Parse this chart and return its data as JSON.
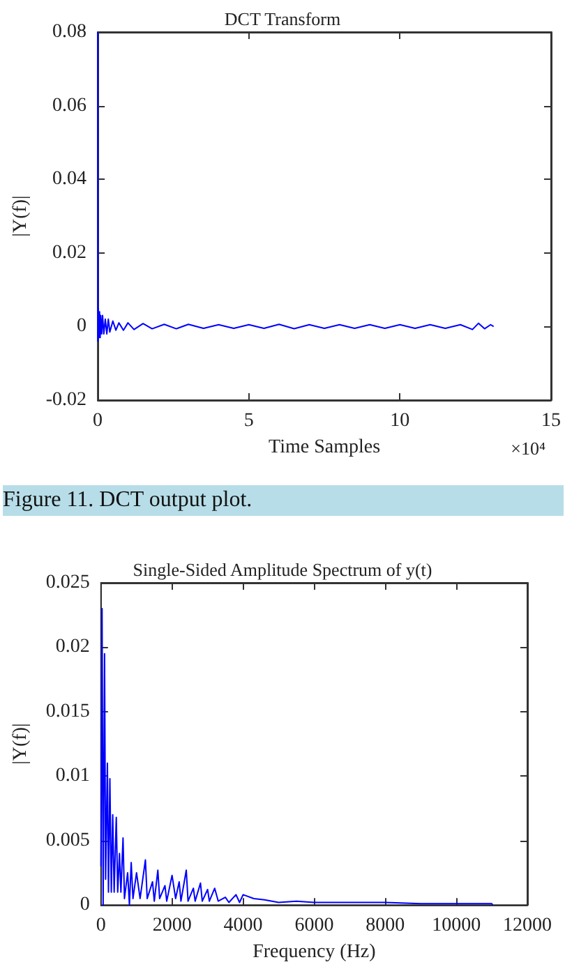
{
  "chart_data": [
    {
      "type": "line",
      "title": "DCT Transform",
      "xlabel": "Time Samples",
      "ylabel": "|Y(f)|",
      "annotations": [
        "×10⁴",
        "Figure 11. DCT output plot."
      ],
      "xlim": [
        0,
        15
      ],
      "xticks": [
        0,
        5,
        10,
        15
      ],
      "ylim": [
        -0.02,
        0.08
      ],
      "yticks": [
        -0.02,
        0,
        0.02,
        0.04,
        0.06,
        0.08
      ],
      "marker": "none",
      "series": [
        {
          "color": "#0000ff",
          "x": [
            0,
            0.005,
            0.02,
            0.04,
            0.06,
            0.08,
            0.1,
            0.13,
            0.16,
            0.2,
            0.25,
            0.3,
            0.35,
            0.4,
            0.5,
            0.6,
            0.7,
            0.85,
            1.0,
            1.2,
            1.5,
            1.8,
            2.2,
            2.6,
            3.0,
            3.5,
            4.0,
            4.5,
            5.0,
            5.5,
            6.0,
            6.5,
            7.0,
            7.5,
            8.0,
            8.5,
            9.0,
            9.5,
            10.0,
            10.5,
            11.0,
            11.5,
            12.0,
            12.4,
            12.6,
            12.8,
            13.0,
            13.1
          ],
          "values": [
            0.08,
            -0.004,
            0.005,
            -0.003,
            0.004,
            -0.003,
            0.003,
            -0.002,
            0.003,
            -0.002,
            0.002,
            -0.002,
            0.002,
            -0.0015,
            0.0015,
            -0.001,
            0.001,
            -0.001,
            0.001,
            -0.0008,
            0.0008,
            -0.0006,
            0.0006,
            -0.0006,
            0.0006,
            -0.0005,
            0.0005,
            -0.0005,
            0.0005,
            -0.0005,
            0.0006,
            -0.0006,
            0.0005,
            -0.0005,
            0.0005,
            -0.0005,
            0.0005,
            -0.0005,
            0.0005,
            -0.0005,
            0.0005,
            -0.0005,
            0.0005,
            -0.0008,
            0.0009,
            -0.0006,
            0.0005,
            0
          ]
        }
      ]
    },
    {
      "type": "line",
      "title": "Single-Sided Amplitude Spectrum of y(t)",
      "xlabel": "Frequency (Hz)",
      "ylabel": "|Y(f)|",
      "xlim": [
        0,
        12000
      ],
      "xticks": [
        0,
        2000,
        4000,
        6000,
        8000,
        10000,
        12000
      ],
      "ylim": [
        0,
        0.025
      ],
      "yticks": [
        0,
        0.005,
        0.01,
        0.015,
        0.02,
        0.025
      ],
      "marker": "none",
      "series": [
        {
          "color": "#0000ff",
          "x": [
            0,
            30,
            60,
            100,
            130,
            180,
            210,
            250,
            290,
            330,
            370,
            430,
            470,
            520,
            560,
            620,
            660,
            750,
            800,
            850,
            900,
            1000,
            1100,
            1250,
            1300,
            1450,
            1500,
            1600,
            1650,
            1800,
            1850,
            2000,
            2100,
            2200,
            2250,
            2400,
            2450,
            2600,
            2650,
            2800,
            2850,
            3000,
            3050,
            3200,
            3300,
            3500,
            3600,
            3800,
            3900,
            4000,
            4300,
            4600,
            5000,
            5500,
            6000,
            7000,
            8000,
            9000,
            10000,
            11000,
            11025
          ],
          "values": [
            0.003,
            0.023,
            0,
            0.0195,
            0.002,
            0.011,
            0.001,
            0.0098,
            0.001,
            0.007,
            0.001,
            0.0068,
            0.001,
            0.004,
            0.001,
            0.0052,
            0.0005,
            0.0025,
            0,
            0.0033,
            0.0005,
            0.0025,
            0.0005,
            0.0035,
            0.0005,
            0.0018,
            0.0003,
            0.0027,
            0.0005,
            0.0015,
            0.0003,
            0.0023,
            0.0005,
            0.0018,
            0.0003,
            0.0027,
            0.0003,
            0.0013,
            0.0003,
            0.0017,
            0.0003,
            0.0012,
            0.0003,
            0.0013,
            0.0003,
            0.0006,
            0.0002,
            0.0008,
            0.0002,
            0.0008,
            0.0005,
            0.0004,
            0.0002,
            0.0003,
            0.0002,
            0.0002,
            0.0002,
            0.0001,
            0.0001,
            0.0001,
            0
          ]
        }
      ]
    }
  ]
}
